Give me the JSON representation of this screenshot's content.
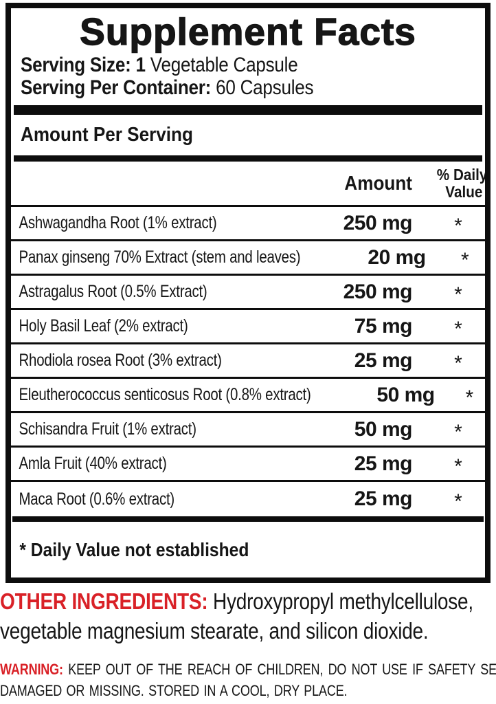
{
  "colors": {
    "accent_red": "#d92127",
    "ink": "#161616"
  },
  "panel": {
    "title": "Supplement Facts",
    "serving_size": {
      "label": "Serving Size: 1",
      "value": "Vegetable Capsule"
    },
    "servings_per_container": {
      "label": "Serving Per Container:",
      "value": "60 Capsules"
    },
    "section_heading": "Amount Per Serving",
    "table": {
      "header": {
        "amount": "Amount",
        "daily_value_line1": "% Daily",
        "daily_value_line2": "Value"
      },
      "rows": [
        {
          "name": "Ashwagandha Root (1% extract)",
          "amount": "250 mg",
          "daily_value": "*"
        },
        {
          "name": "Panax ginseng 70% Extract (stem and leaves)",
          "amount": "20 mg",
          "daily_value": "*"
        },
        {
          "name": "Astragalus Root (0.5% Extract)",
          "amount": "250 mg",
          "daily_value": "*"
        },
        {
          "name": "Holy Basil Leaf (2% extract)",
          "amount": "75 mg",
          "daily_value": "*"
        },
        {
          "name": "Rhodiola rosea Root (3% extract)",
          "amount": "25 mg",
          "daily_value": "*"
        },
        {
          "name": "Eleutherococcus senticosus Root (0.8% extract)",
          "amount": "50 mg",
          "daily_value": "*"
        },
        {
          "name": "Schisandra Fruit (1% extract)",
          "amount": "50 mg",
          "daily_value": "*"
        },
        {
          "name": "Amla Fruit (40% extract)",
          "amount": "25 mg",
          "daily_value": "*"
        },
        {
          "name": "Maca Root (0.6% extract)",
          "amount": "25 mg",
          "daily_value": "*"
        }
      ],
      "footnote": "* Daily Value not established"
    }
  },
  "other_ingredients": {
    "label": "OTHER INGREDIENTS:",
    "line1": "Hydroxypropyl methylcellulose,",
    "line2": "vegetable magnesium stearate, and silicon dioxide."
  },
  "warning": {
    "label": "WARNING:",
    "line1": "KEEP OUT OF THE REACH OF CHILDREN, DO NOT USE IF SAFETY SEAL IS",
    "line2": "DAMAGED OR MISSING. STORED IN A COOL, DRY PLACE."
  }
}
